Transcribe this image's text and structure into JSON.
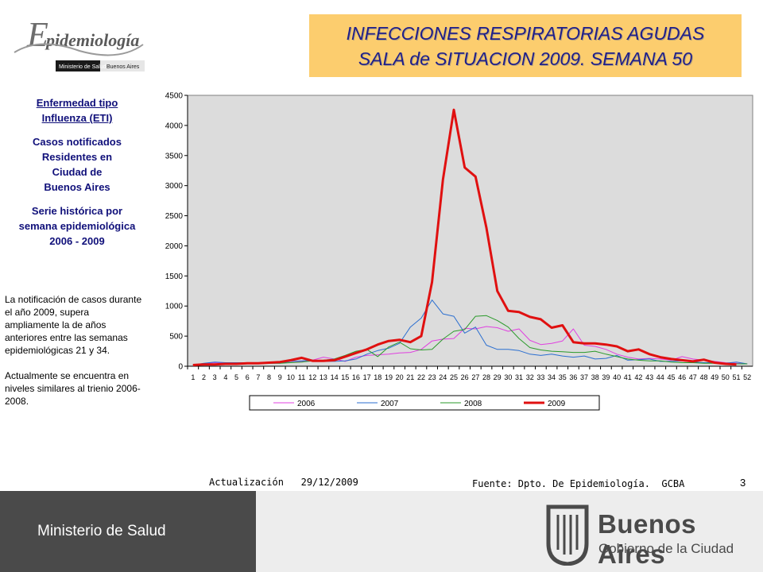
{
  "logo": {
    "text": "Epidemiología",
    "ministry": "Ministerio de Salud",
    "city": "Buenos Aires"
  },
  "title": {
    "line1": "INFECCIONES RESPIRATORIAS AGUDAS",
    "line2": "SALA de SITUACION 2009. SEMANA 50"
  },
  "left_panel": {
    "heading1": "Enfermedad tipo",
    "heading2": "Influenza (ETI)",
    "sub1": "Casos notificados",
    "sub2": "Residentes en",
    "sub3": "Ciudad de",
    "sub4": "Buenos Aires",
    "sub5": "Serie histórica por",
    "sub6": "semana epidemiológica",
    "sub7": "2006 - 2009",
    "note1": "La notificación de casos durante el año 2009, supera ampliamente la de años anteriores entre las semanas epidemiológicas 21 y 34.",
    "note2": "Actualmente se encuentra en niveles similares al trienio 2006-2008."
  },
  "footer": {
    "update": "Actualización   29/12/2009",
    "source": "Fuente: Dpto. De Epidemiología.  GCBA",
    "page": "3"
  },
  "bottom": {
    "ministerio": "Ministerio de Salud",
    "ba_name": "Buenos Aires",
    "ba_sub": "Gobierno de la Ciudad"
  },
  "colors": {
    "title_bg": "#fccd6e",
    "plot_bg": "#dcdcdc",
    "s2006": "#e040e0",
    "s2007": "#2a6ed0",
    "s2008": "#2a9a2a",
    "s2009": "#e01010"
  },
  "chart_data": {
    "type": "line",
    "ylim": [
      0,
      4500
    ],
    "yticks": [
      0,
      500,
      1000,
      1500,
      2000,
      2500,
      3000,
      3500,
      4000,
      4500
    ],
    "x": [
      1,
      2,
      3,
      4,
      5,
      6,
      7,
      8,
      9,
      10,
      11,
      12,
      13,
      14,
      15,
      16,
      17,
      18,
      19,
      20,
      21,
      22,
      23,
      24,
      25,
      26,
      27,
      28,
      29,
      30,
      31,
      32,
      33,
      34,
      35,
      36,
      37,
      38,
      39,
      40,
      41,
      42,
      43,
      44,
      45,
      46,
      47,
      48,
      49,
      50,
      51,
      52
    ],
    "legend_position": "bottom",
    "grid": false,
    "series": [
      {
        "name": "2006",
        "color": "#e040e0",
        "width": 1,
        "values": [
          20,
          40,
          60,
          50,
          60,
          50,
          60,
          70,
          60,
          80,
          80,
          100,
          150,
          120,
          80,
          150,
          180,
          190,
          200,
          220,
          230,
          280,
          420,
          450,
          460,
          630,
          620,
          660,
          640,
          580,
          620,
          430,
          360,
          380,
          420,
          620,
          350,
          330,
          280,
          200,
          150,
          120,
          130,
          120,
          100,
          160,
          120,
          100,
          80,
          60,
          50,
          40
        ]
      },
      {
        "name": "2007",
        "color": "#2a6ed0",
        "width": 1,
        "values": [
          20,
          50,
          70,
          60,
          60,
          60,
          60,
          50,
          50,
          80,
          90,
          100,
          80,
          80,
          90,
          120,
          200,
          260,
          300,
          380,
          650,
          800,
          1100,
          870,
          830,
          550,
          650,
          350,
          280,
          280,
          260,
          200,
          180,
          200,
          170,
          150,
          170,
          120,
          130,
          180,
          100,
          110,
          120,
          80,
          80,
          90,
          70,
          60,
          60,
          50,
          70,
          40
        ]
      },
      {
        "name": "2008",
        "color": "#2a9a2a",
        "width": 1,
        "values": [
          20,
          30,
          40,
          40,
          40,
          50,
          50,
          50,
          50,
          60,
          70,
          90,
          100,
          120,
          180,
          250,
          280,
          160,
          320,
          400,
          290,
          270,
          280,
          450,
          580,
          610,
          830,
          840,
          760,
          650,
          460,
          310,
          270,
          250,
          240,
          230,
          230,
          250,
          200,
          160,
          120,
          100,
          90,
          90,
          70,
          60,
          60,
          50,
          50,
          50,
          40,
          40
        ]
      },
      {
        "name": "2009",
        "color": "#e01010",
        "width": 3,
        "values": [
          20,
          30,
          30,
          40,
          40,
          50,
          50,
          60,
          70,
          100,
          140,
          90,
          90,
          100,
          160,
          220,
          280,
          360,
          420,
          440,
          400,
          500,
          1400,
          3100,
          4260,
          3300,
          3150,
          2300,
          1250,
          920,
          900,
          820,
          780,
          640,
          680,
          400,
          380,
          380,
          360,
          330,
          250,
          280,
          200,
          150,
          120,
          100,
          80,
          110,
          60,
          40,
          30,
          null
        ]
      }
    ]
  }
}
